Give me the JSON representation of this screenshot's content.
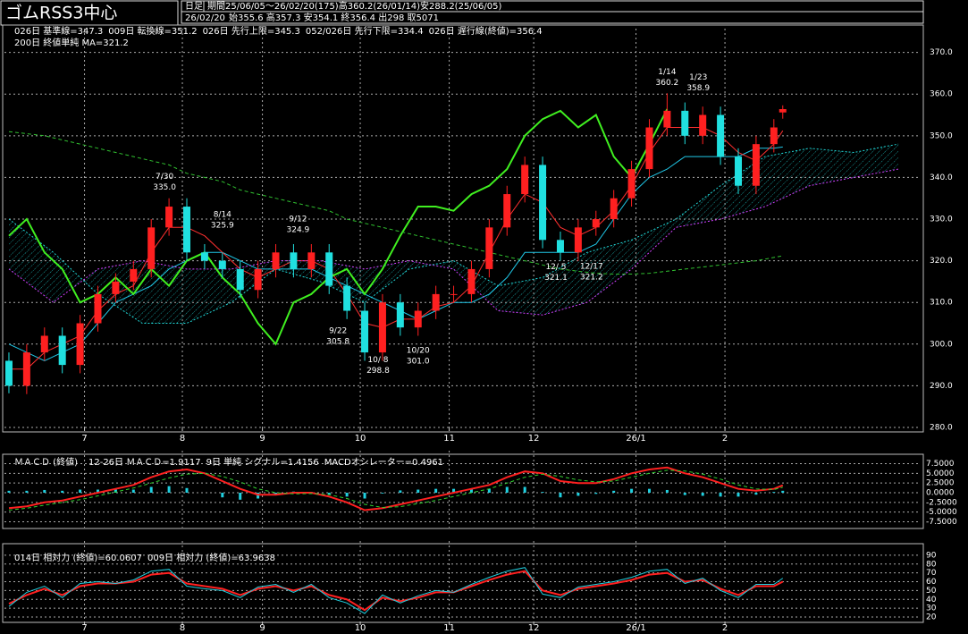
{
  "chart_data": [
    {
      "type": "candlestick",
      "title": "ゴムRSS3中心",
      "timeframe": "日足",
      "period": "期間25/06/05～26/02/20(175)高360.2(26/01/14)安288.2(25/06/05)",
      "date": "26/02/20",
      "ohlc": "始355.6 高357.3 安354.1 終356.4 出298 取5071",
      "up_color": "#ff2020",
      "down_color": "#20e0e0",
      "grid": true,
      "xlim": [
        -1,
        205
      ],
      "ylim": [
        280,
        374
      ],
      "xticks": [
        {
          "value": 17,
          "label": "7"
        },
        {
          "value": 39,
          "label": "8"
        },
        {
          "value": 57,
          "label": "9"
        },
        {
          "value": 79,
          "label": "10"
        },
        {
          "value": 99,
          "label": "11"
        },
        {
          "value": 118,
          "label": "12"
        },
        {
          "value": 141,
          "label": "26/1"
        },
        {
          "value": 161,
          "label": "2"
        }
      ],
      "yticks": [
        {
          "value": 280,
          "label": "280.0"
        },
        {
          "value": 290,
          "label": "290.0"
        },
        {
          "value": 300,
          "label": "300.0"
        },
        {
          "value": 310,
          "label": "310.0"
        },
        {
          "value": 320,
          "label": "320.0"
        },
        {
          "value": 330,
          "label": "330.0"
        },
        {
          "value": 340,
          "label": "340.0"
        },
        {
          "value": 350,
          "label": "350.0"
        },
        {
          "value": 360,
          "label": "360.0"
        },
        {
          "value": 370,
          "label": "370.0"
        }
      ],
      "x": [
        0,
        4,
        8,
        12,
        16,
        20,
        24,
        28,
        32,
        36,
        40,
        44,
        48,
        52,
        56,
        60,
        64,
        68,
        72,
        76,
        80,
        84,
        88,
        92,
        96,
        100,
        104,
        108,
        112,
        116,
        120,
        124,
        128,
        132,
        136,
        140,
        144,
        148,
        152,
        156,
        160,
        164,
        168,
        172,
        174
      ],
      "open": [
        296,
        290,
        298,
        302,
        295,
        305,
        312,
        315,
        318,
        328,
        333,
        322,
        320,
        318,
        313,
        318,
        322,
        318,
        322,
        314,
        308,
        298,
        310,
        304,
        308,
        312,
        312,
        318,
        328,
        336,
        343,
        325,
        322,
        328,
        330,
        335,
        342,
        352,
        356,
        350,
        355,
        345,
        338,
        348,
        355.6
      ],
      "high": [
        298,
        300,
        304,
        304,
        307,
        314,
        317,
        320,
        330,
        335,
        335,
        324,
        322,
        320,
        320,
        324,
        324,
        324,
        324,
        316,
        310,
        312,
        312,
        310,
        314,
        314,
        320,
        330,
        338,
        345,
        345,
        327,
        330,
        332,
        337,
        344,
        354,
        360.2,
        358,
        357,
        357,
        347,
        350,
        354,
        357.3
      ],
      "low": [
        288.2,
        288,
        296,
        293,
        293,
        303,
        310,
        313,
        316,
        326,
        320,
        318,
        316,
        311,
        311,
        316,
        316,
        316,
        312,
        306,
        296,
        296,
        302,
        302,
        306,
        310,
        310,
        316,
        326,
        334,
        323,
        320,
        320,
        326,
        328,
        333,
        340,
        350,
        348,
        348,
        343,
        336,
        336,
        346,
        354.1
      ],
      "close": [
        290,
        298,
        302,
        295,
        305,
        312,
        315,
        318,
        328,
        333,
        322,
        320,
        318,
        313,
        318,
        322,
        318,
        322,
        314,
        308,
        298,
        310,
        304,
        308,
        312,
        312,
        318,
        328,
        336,
        343,
        325,
        322,
        328,
        330,
        335,
        342,
        352,
        356,
        350,
        355,
        345,
        338,
        348,
        352,
        356.4
      ],
      "series": [
        {
          "name": "026日 基準線=347.3",
          "color": "#20c8e8",
          "values": [
            300,
            298,
            296,
            298,
            300,
            305,
            310,
            312,
            314,
            318,
            320,
            322,
            322,
            320,
            318,
            318,
            318,
            318,
            316,
            314,
            312,
            310,
            308,
            306,
            308,
            310,
            310,
            312,
            316,
            322,
            322,
            322,
            322,
            324,
            330,
            336,
            340,
            342,
            345,
            345,
            345,
            345,
            347,
            347,
            347.3
          ]
        },
        {
          "name": "009日 転換線=351.2",
          "color": "#ff3030",
          "values": [
            294,
            294,
            298,
            300,
            302,
            308,
            312,
            314,
            322,
            328,
            328,
            326,
            322,
            318,
            316,
            318,
            320,
            320,
            318,
            312,
            305,
            304,
            306,
            306,
            309,
            310,
            314,
            322,
            330,
            336,
            334,
            328,
            326,
            328,
            332,
            338,
            346,
            352,
            352,
            352,
            350,
            346,
            344,
            348,
            351.2
          ]
        },
        {
          "name": "026日 先行上限=345.3",
          "color": "#20d8d8",
          "cloud": true,
          "x": [
            0,
            10,
            20,
            30,
            40,
            50,
            60,
            70,
            80,
            90,
            100,
            110,
            120,
            130,
            140,
            150,
            160,
            170,
            180,
            190,
            200
          ],
          "values": [
            330,
            322,
            312,
            305,
            305,
            310,
            318,
            315,
            310,
            318,
            320,
            314,
            316,
            322,
            325,
            330,
            338,
            345,
            347,
            346,
            348
          ]
        },
        {
          "name": "052/026日 先行下限=334.4",
          "color": "#d040ff",
          "cloud": true,
          "x": [
            0,
            10,
            20,
            30,
            40,
            50,
            60,
            70,
            80,
            90,
            100,
            110,
            120,
            130,
            140,
            150,
            160,
            170,
            180,
            190,
            200
          ],
          "values": [
            318,
            310,
            318,
            320,
            318,
            318,
            320,
            320,
            318,
            320,
            318,
            308,
            307,
            310,
            318,
            328,
            330,
            333,
            338,
            340,
            342
          ]
        },
        {
          "name": "026日 遅行線(終値)=356.4",
          "color": "#40f020",
          "width": 2,
          "x": [
            0,
            4,
            8,
            12,
            16,
            20,
            24,
            28,
            32,
            36,
            40,
            44,
            48,
            52,
            56,
            60,
            64,
            68,
            72,
            76,
            80,
            84,
            88,
            92,
            96,
            100,
            104,
            108,
            112,
            116,
            120,
            124,
            128,
            132,
            136,
            140,
            144,
            148
          ],
          "values": [
            326,
            330,
            322,
            318,
            310,
            312,
            316,
            312,
            318,
            314,
            320,
            322,
            316,
            312,
            305,
            300,
            310,
            312,
            316,
            318,
            312,
            318,
            326,
            333,
            333,
            332,
            336,
            338,
            342,
            350,
            354,
            356,
            352,
            355,
            345,
            340,
            348,
            356.4
          ]
        },
        {
          "name": "200日 終値単純 MA=321.2",
          "color": "#30c030",
          "dash": true,
          "values": [
            351,
            350.5,
            350,
            349,
            348,
            347,
            346,
            345,
            344,
            343,
            341,
            340,
            339,
            337,
            336,
            335,
            334,
            333,
            332,
            330,
            329,
            328,
            327,
            326,
            325,
            324,
            323,
            322,
            321,
            320,
            319,
            318,
            317.5,
            317,
            316.8,
            316.8,
            317,
            317.5,
            318,
            318.5,
            319,
            319.5,
            320,
            320.8,
            321.2
          ]
        }
      ],
      "annotations": [
        {
          "date": "7/30",
          "x": 35,
          "value": 335,
          "label": "335.0",
          "color": "#ff3030",
          "position": "above"
        },
        {
          "date": "8/14",
          "x": 48,
          "value": 325.9,
          "color": "#ff3030",
          "position": "above"
        },
        {
          "date": "9/12",
          "x": 65,
          "value": 324.9,
          "color": "#ff3030",
          "position": "above"
        },
        {
          "date": "1/14",
          "x": 148,
          "value": 360.2,
          "color": "#ff3030",
          "position": "above"
        },
        {
          "date": "1/23",
          "x": 155,
          "value": 358.9,
          "color": "#ff3030",
          "position": "above"
        },
        {
          "date": "9/22",
          "x": 74,
          "value": 305.8,
          "color": "#20e0e0",
          "position": "below"
        },
        {
          "date": "10/ 8",
          "x": 83,
          "value": 298.8,
          "color": "#20e0e0",
          "position": "below"
        },
        {
          "date": "10/20",
          "x": 92,
          "value": 301,
          "label": "301.0",
          "color": "#20e0e0",
          "position": "below"
        },
        {
          "date": "12/ 5",
          "x": 123,
          "value": 321.1,
          "color": "#20e0e0",
          "position": "below"
        },
        {
          "date": "12/17",
          "x": 131,
          "value": 321.2,
          "color": "#20e0e0",
          "position": "below"
        }
      ]
    },
    {
      "type": "macd",
      "title": "ＭＡＣＤ (終値)",
      "xlim": [
        -1,
        205
      ],
      "ylim": [
        -9,
        9
      ],
      "grid": true,
      "yticks": [
        {
          "value": 7.5,
          "label": "7.5000"
        },
        {
          "value": 5,
          "label": "5.0000"
        },
        {
          "value": 2.5,
          "label": "2.5000"
        },
        {
          "value": 0,
          "label": "0.0000"
        },
        {
          "value": -2.5,
          "label": "-2.5000"
        },
        {
          "value": -5,
          "label": "-5.0000"
        },
        {
          "value": -7.5,
          "label": "-7.5000"
        }
      ],
      "x": [
        0,
        4,
        8,
        12,
        16,
        20,
        24,
        28,
        32,
        36,
        40,
        44,
        48,
        52,
        56,
        60,
        64,
        68,
        72,
        76,
        80,
        84,
        88,
        92,
        96,
        100,
        104,
        108,
        112,
        116,
        120,
        124,
        128,
        132,
        136,
        140,
        144,
        148,
        152,
        156,
        160,
        164,
        168,
        172,
        174
      ],
      "series": [
        {
          "name": "12-26日 ＭＡＣＤ=1.9117",
          "color": "#ff2020",
          "width": 2,
          "values": [
            -4,
            -3.5,
            -2.5,
            -2,
            -1,
            0,
            1,
            2,
            4,
            5.5,
            6,
            5,
            3,
            1,
            -0.5,
            -0.5,
            0,
            0,
            -1,
            -2.5,
            -4.5,
            -4,
            -3,
            -2,
            -1,
            0,
            1,
            2,
            4,
            5.5,
            5,
            3,
            2.5,
            2.5,
            3.5,
            5,
            6,
            6.5,
            5,
            4,
            2.5,
            1,
            0.5,
            1,
            1.9117
          ]
        },
        {
          "name": "9日 単純 シグナル=1.4156",
          "color": "#30d030",
          "dash": true,
          "values": [
            -4.5,
            -4,
            -3.2,
            -2.5,
            -1.8,
            -0.8,
            0.2,
            1.2,
            2.5,
            3.8,
            4.8,
            5,
            4.2,
            2.8,
            1,
            0,
            -0.3,
            -0.2,
            -0.5,
            -1.5,
            -3,
            -3.8,
            -3.6,
            -2.8,
            -2,
            -1,
            0,
            1,
            2.5,
            4,
            4.8,
            4.2,
            3.3,
            2.8,
            3,
            4,
            5,
            5.8,
            5.6,
            4.8,
            3.5,
            2,
            1,
            0.8,
            1.4156
          ]
        },
        {
          "name": "MACDオシレーター=0.4961",
          "color": "#20d0e0",
          "bars": true,
          "values": [
            0.5,
            0.5,
            0.7,
            0.5,
            0.8,
            0.8,
            0.8,
            0.8,
            1.5,
            1.7,
            1.2,
            0,
            -1.2,
            -1.8,
            -1.5,
            -0.5,
            0.3,
            0.2,
            -0.5,
            -1,
            -1.5,
            -0.2,
            0.6,
            0.8,
            1,
            1,
            1,
            1,
            1.5,
            1.5,
            0.2,
            -1.2,
            -0.8,
            -0.3,
            0.5,
            1,
            1,
            0.7,
            -0.6,
            -0.8,
            -1,
            -1,
            -0.5,
            0.2,
            0.4961
          ]
        }
      ]
    },
    {
      "type": "rsi",
      "xlim": [
        -1,
        205
      ],
      "ylim": [
        15,
        98
      ],
      "grid": true,
      "xticks": [
        {
          "value": 17,
          "label": "7"
        },
        {
          "value": 39,
          "label": "8"
        },
        {
          "value": 57,
          "label": "9"
        },
        {
          "value": 79,
          "label": "10"
        },
        {
          "value": 99,
          "label": "11"
        },
        {
          "value": 118,
          "label": "12"
        },
        {
          "value": 141,
          "label": "26/1"
        },
        {
          "value": 161,
          "label": "2"
        }
      ],
      "yticks": [
        20,
        30,
        40,
        50,
        60,
        70,
        80,
        90
      ],
      "x": [
        0,
        4,
        8,
        12,
        16,
        20,
        24,
        28,
        32,
        36,
        40,
        44,
        48,
        52,
        56,
        60,
        64,
        68,
        72,
        76,
        80,
        84,
        88,
        92,
        96,
        100,
        104,
        108,
        112,
        116,
        120,
        124,
        128,
        132,
        136,
        140,
        144,
        148,
        152,
        156,
        160,
        164,
        168,
        172,
        174
      ],
      "series": [
        {
          "name": "014日 相対力 (終値)=60.0607",
          "color": "#ff2020",
          "width": 2,
          "values": [
            35,
            45,
            52,
            45,
            55,
            58,
            58,
            60,
            68,
            70,
            58,
            55,
            52,
            45,
            52,
            55,
            50,
            55,
            45,
            40,
            28,
            42,
            38,
            42,
            48,
            48,
            55,
            62,
            68,
            72,
            50,
            45,
            52,
            55,
            58,
            62,
            68,
            70,
            60,
            62,
            52,
            45,
            55,
            55,
            60.0607
          ]
        },
        {
          "name": "009日 相対力 (終値)=63.9638",
          "color": "#20d0e0",
          "values": [
            32,
            48,
            55,
            42,
            58,
            60,
            58,
            62,
            72,
            74,
            55,
            52,
            50,
            42,
            54,
            57,
            48,
            57,
            42,
            36,
            24,
            45,
            36,
            44,
            50,
            48,
            57,
            65,
            72,
            76,
            46,
            42,
            54,
            57,
            60,
            65,
            72,
            74,
            58,
            64,
            50,
            42,
            57,
            57,
            63.9638
          ]
        }
      ]
    }
  ]
}
